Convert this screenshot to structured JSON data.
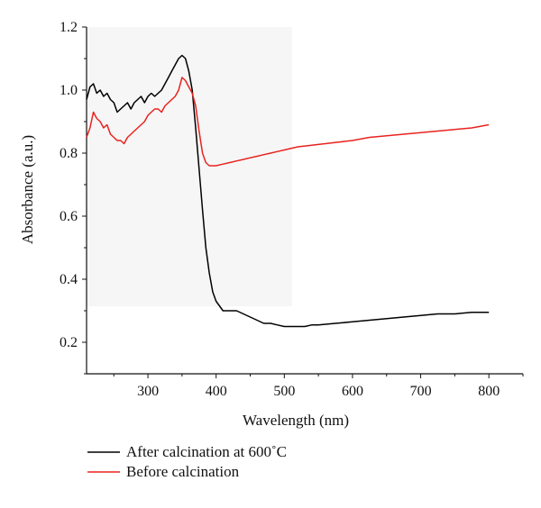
{
  "chart_data": {
    "type": "line",
    "title": "",
    "xlabel": "Wavelength (nm)",
    "ylabel": "Absorbance (a.u.)",
    "xlim": [
      210,
      850
    ],
    "ylim": [
      0.1,
      1.2
    ],
    "xticks": [
      300,
      400,
      500,
      600,
      700,
      800
    ],
    "yticks": [
      0.2,
      0.4,
      0.6,
      0.8,
      1.0,
      1.2
    ],
    "ytick_labels": [
      "0.2",
      "0.4",
      "0.6",
      "0.8",
      "1.0",
      "1.2"
    ],
    "legend_position": "bottom-left, below plot",
    "grid": false,
    "series": [
      {
        "name": "After calcination at 600˚C",
        "color": "#000000",
        "x": [
          210,
          215,
          220,
          225,
          230,
          235,
          240,
          245,
          250,
          255,
          260,
          265,
          270,
          275,
          280,
          285,
          290,
          295,
          300,
          305,
          310,
          315,
          320,
          325,
          330,
          335,
          340,
          345,
          350,
          355,
          360,
          365,
          370,
          375,
          380,
          385,
          390,
          395,
          400,
          410,
          420,
          430,
          440,
          450,
          460,
          470,
          480,
          490,
          500,
          510,
          520,
          530,
          540,
          550,
          575,
          600,
          625,
          650,
          675,
          700,
          725,
          750,
          775,
          800
        ],
        "y": [
          0.97,
          1.01,
          1.02,
          0.99,
          1.0,
          0.98,
          0.99,
          0.97,
          0.96,
          0.93,
          0.94,
          0.95,
          0.96,
          0.94,
          0.96,
          0.97,
          0.98,
          0.96,
          0.98,
          0.99,
          0.98,
          0.99,
          1.0,
          1.02,
          1.04,
          1.06,
          1.08,
          1.1,
          1.11,
          1.1,
          1.06,
          1.0,
          0.88,
          0.75,
          0.62,
          0.5,
          0.42,
          0.36,
          0.33,
          0.3,
          0.3,
          0.3,
          0.29,
          0.28,
          0.27,
          0.26,
          0.26,
          0.255,
          0.25,
          0.25,
          0.25,
          0.25,
          0.255,
          0.255,
          0.26,
          0.265,
          0.27,
          0.275,
          0.28,
          0.285,
          0.29,
          0.29,
          0.295,
          0.295
        ]
      },
      {
        "name": "Before calcination",
        "color": "#e8231f",
        "x": [
          210,
          215,
          220,
          225,
          230,
          235,
          240,
          245,
          250,
          255,
          260,
          265,
          270,
          275,
          280,
          285,
          290,
          295,
          300,
          305,
          310,
          315,
          320,
          325,
          330,
          335,
          340,
          345,
          350,
          355,
          360,
          365,
          370,
          375,
          380,
          385,
          390,
          395,
          400,
          410,
          420,
          430,
          440,
          450,
          460,
          470,
          480,
          490,
          500,
          520,
          540,
          560,
          580,
          600,
          625,
          650,
          675,
          700,
          725,
          750,
          775,
          800
        ],
        "y": [
          0.85,
          0.88,
          0.93,
          0.91,
          0.9,
          0.88,
          0.89,
          0.86,
          0.85,
          0.84,
          0.84,
          0.83,
          0.85,
          0.86,
          0.87,
          0.88,
          0.89,
          0.9,
          0.92,
          0.93,
          0.94,
          0.94,
          0.93,
          0.95,
          0.96,
          0.97,
          0.98,
          1.0,
          1.04,
          1.03,
          1.01,
          0.99,
          0.95,
          0.87,
          0.8,
          0.77,
          0.76,
          0.76,
          0.76,
          0.765,
          0.77,
          0.775,
          0.78,
          0.785,
          0.79,
          0.795,
          0.8,
          0.805,
          0.81,
          0.82,
          0.825,
          0.83,
          0.835,
          0.84,
          0.85,
          0.855,
          0.86,
          0.865,
          0.87,
          0.875,
          0.88,
          0.89
        ]
      }
    ]
  }
}
